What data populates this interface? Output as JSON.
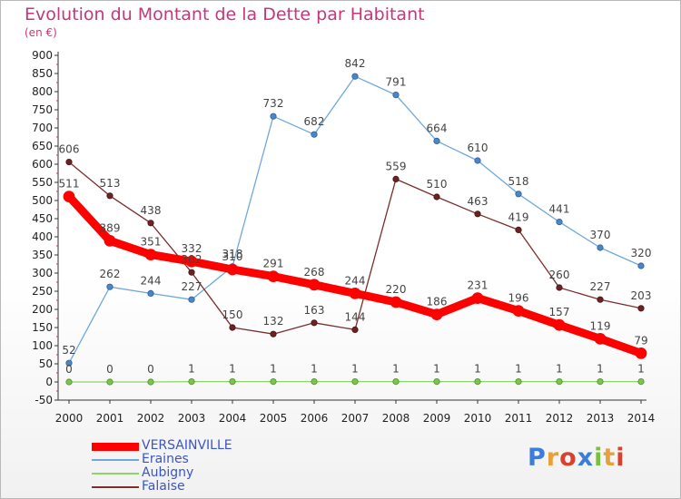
{
  "header": {
    "title": "Evolution du Montant de la Dette par Habitant",
    "unit": "(en €)"
  },
  "logo": {
    "text": "Proxiti"
  },
  "chart_data": {
    "type": "line",
    "title": "Evolution du Montant de la Dette par Habitant",
    "ylabel": "(en €)",
    "xlabel": "",
    "x": [
      "2000",
      "2001",
      "2002",
      "2003",
      "2004",
      "2005",
      "2006",
      "2007",
      "2008",
      "2009",
      "2010",
      "2011",
      "2012",
      "2013",
      "2014"
    ],
    "ylim": [
      -50,
      900
    ],
    "yticks": [
      -50,
      0,
      50,
      100,
      150,
      200,
      250,
      300,
      350,
      400,
      450,
      500,
      550,
      600,
      650,
      700,
      750,
      800,
      850,
      900
    ],
    "grid": false,
    "legend_position": "bottom-left",
    "series": [
      {
        "name": "VERSAINVILLE",
        "color": "#ff0000",
        "values": [
          511,
          389,
          351,
          332,
          310,
          291,
          268,
          244,
          220,
          186,
          231,
          196,
          157,
          119,
          79
        ]
      },
      {
        "name": "Eraines",
        "color": "#6fa8dc",
        "values": [
          52,
          262,
          244,
          227,
          318,
          732,
          682,
          842,
          791,
          664,
          610,
          518,
          441,
          370,
          320
        ]
      },
      {
        "name": "Aubigny",
        "color": "#8fd46a",
        "values": [
          0,
          0,
          0,
          1,
          1,
          1,
          1,
          1,
          1,
          1,
          1,
          1,
          1,
          1,
          1
        ]
      },
      {
        "name": "Falaise",
        "color": "#7b2e2e",
        "values": [
          606,
          513,
          438,
          302,
          150,
          132,
          163,
          144,
          559,
          510,
          463,
          419,
          260,
          227,
          203
        ]
      }
    ]
  }
}
